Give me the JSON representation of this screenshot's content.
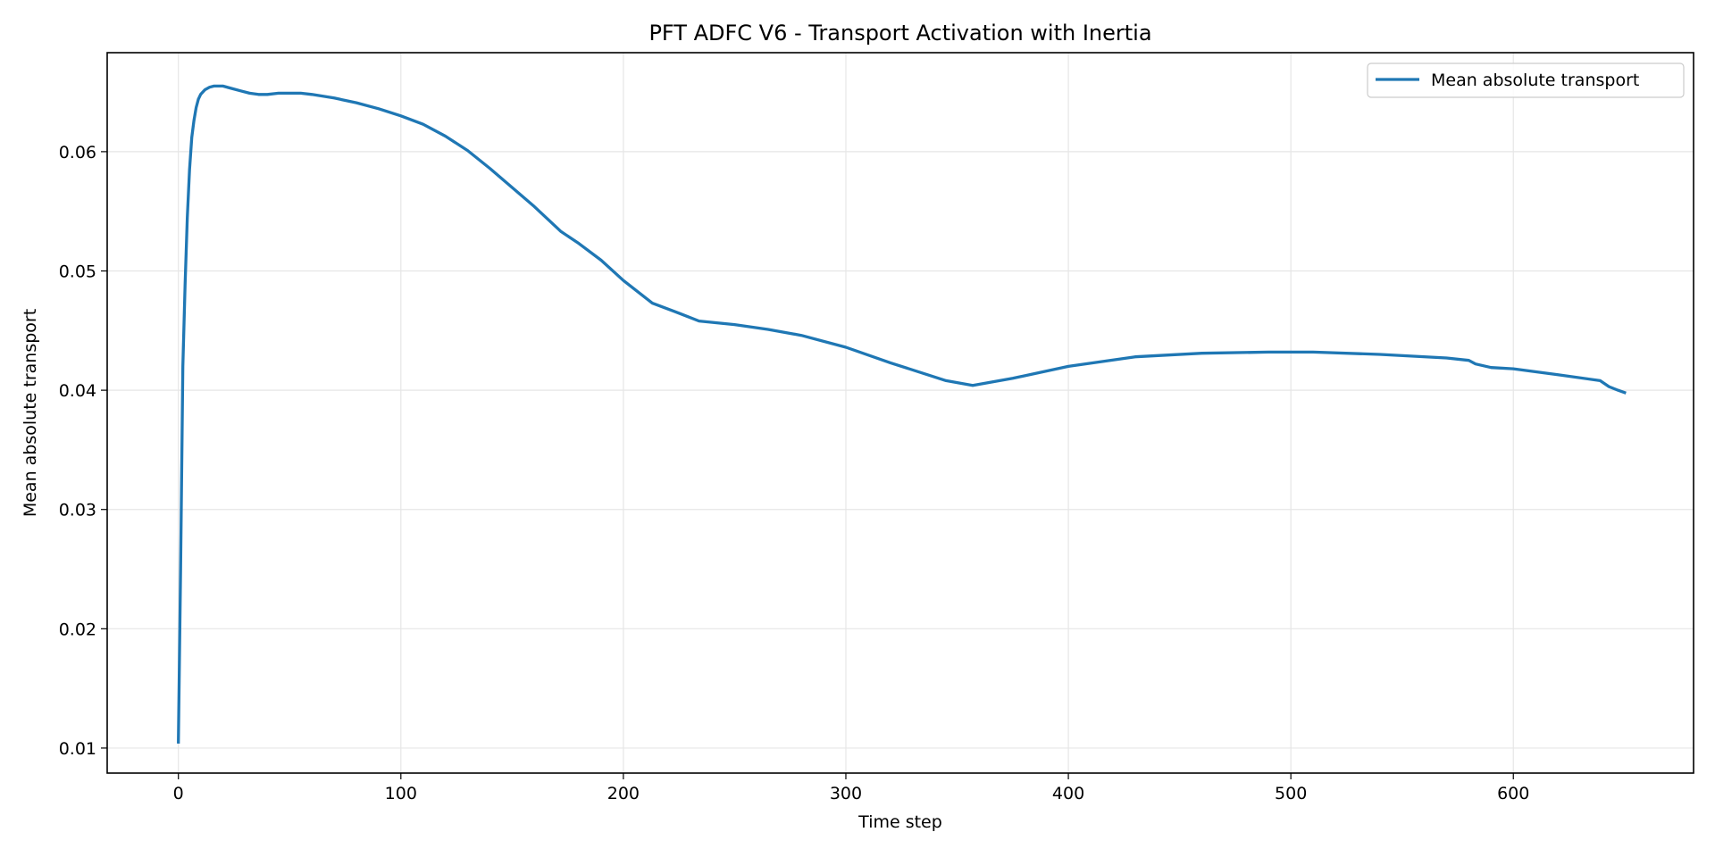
{
  "chart_data": {
    "type": "line",
    "title": "PFT ADFC V6 - Transport Activation with Inertia",
    "xlabel": "Time step",
    "ylabel": "Mean absolute transport",
    "xlim": [
      -32,
      681
    ],
    "ylim": [
      0.0079,
      0.0683
    ],
    "xticks": [
      0,
      100,
      200,
      300,
      400,
      500,
      600
    ],
    "yticks": [
      0.01,
      0.02,
      0.03,
      0.04,
      0.05,
      0.06
    ],
    "grid": true,
    "legend_position": "top-right",
    "colors": {
      "series": "#1f77b4",
      "grid": "#e6e6e6",
      "axes": "#000000"
    },
    "series": [
      {
        "name": "Mean absolute transport",
        "x": [
          0,
          1,
          2,
          3,
          4,
          5,
          6,
          7,
          8,
          9,
          10,
          12,
          14,
          16,
          18,
          20,
          24,
          28,
          32,
          36,
          40,
          45,
          50,
          55,
          60,
          70,
          80,
          90,
          100,
          110,
          120,
          130,
          140,
          150,
          160,
          172,
          180,
          190,
          200,
          213,
          223,
          234,
          250,
          265,
          280,
          300,
          320,
          345,
          357,
          375,
          400,
          430,
          460,
          490,
          510,
          540,
          570,
          580,
          583,
          590,
          600,
          620,
          639,
          643,
          647,
          650
        ],
        "y": [
          0.0105,
          0.025,
          0.042,
          0.0488,
          0.0545,
          0.0585,
          0.0612,
          0.0626,
          0.0637,
          0.0644,
          0.0648,
          0.0652,
          0.0654,
          0.0655,
          0.0655,
          0.0655,
          0.0653,
          0.0651,
          0.0649,
          0.0648,
          0.0648,
          0.0649,
          0.0649,
          0.0649,
          0.0648,
          0.0645,
          0.0641,
          0.0636,
          0.063,
          0.0623,
          0.0613,
          0.0601,
          0.0586,
          0.057,
          0.0554,
          0.0533,
          0.0523,
          0.0509,
          0.0492,
          0.0473,
          0.0466,
          0.0458,
          0.0455,
          0.0451,
          0.0446,
          0.0436,
          0.0423,
          0.0408,
          0.0404,
          0.041,
          0.042,
          0.0428,
          0.0431,
          0.0432,
          0.0432,
          0.043,
          0.0427,
          0.0425,
          0.0422,
          0.0419,
          0.0418,
          0.0413,
          0.0408,
          0.0403,
          0.04,
          0.0398
        ]
      }
    ]
  }
}
